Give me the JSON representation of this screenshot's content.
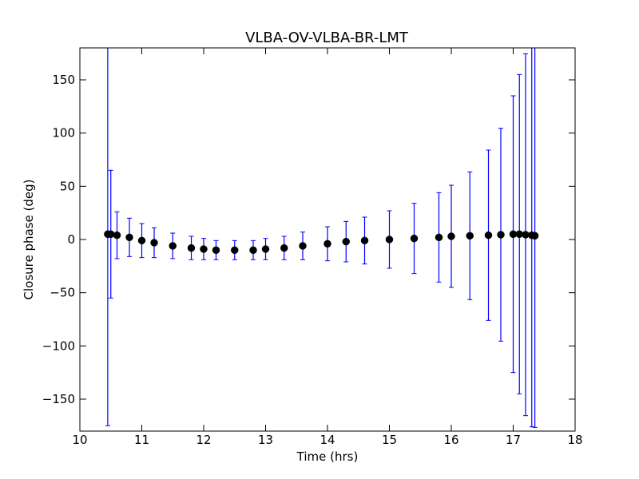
{
  "chart_data": {
    "type": "scatter",
    "title": "VLBA-OV-VLBA-BR-LMT",
    "xlabel": "Time (hrs)",
    "ylabel": "Closure phase (deg)",
    "xlim": [
      10,
      18
    ],
    "ylim": [
      -180,
      180
    ],
    "x_ticks": [
      10,
      11,
      12,
      13,
      14,
      15,
      16,
      17,
      18
    ],
    "x_tick_labels": [
      "10",
      "11",
      "12",
      "13",
      "14",
      "15",
      "16",
      "17",
      "18"
    ],
    "y_ticks": [
      -150,
      -100,
      -50,
      0,
      50,
      100,
      150
    ],
    "y_tick_labels": [
      "−150",
      "−100",
      "−50",
      "0",
      "50",
      "100",
      "150"
    ],
    "grid": false,
    "legend": "none",
    "series": [
      {
        "marker_color": "#000000",
        "errorbar_color": "#0000ff",
        "x": [
          10.45,
          10.5,
          10.6,
          10.8,
          11.0,
          11.2,
          11.5,
          11.8,
          12.0,
          12.2,
          12.5,
          12.8,
          13.0,
          13.3,
          13.6,
          14.0,
          14.3,
          14.6,
          15.0,
          15.4,
          15.8,
          16.0,
          16.3,
          16.6,
          16.8,
          17.0,
          17.1,
          17.2,
          17.3,
          17.35
        ],
        "y": [
          5,
          5,
          4,
          2,
          -1,
          -3,
          -6,
          -8,
          -9,
          -10,
          -10,
          -10,
          -9,
          -8,
          -6,
          -4,
          -2,
          -1,
          0,
          1,
          2,
          3,
          3.5,
          4,
          4.5,
          5,
          5,
          4.5,
          4,
          3.5
        ],
        "yerr": [
          180,
          60,
          22,
          18,
          16,
          14,
          12,
          11,
          10,
          9,
          9,
          9,
          10,
          11,
          13,
          16,
          19,
          22,
          27,
          33,
          42,
          48,
          60,
          80,
          100,
          130,
          150,
          170,
          180,
          180
        ]
      }
    ]
  }
}
